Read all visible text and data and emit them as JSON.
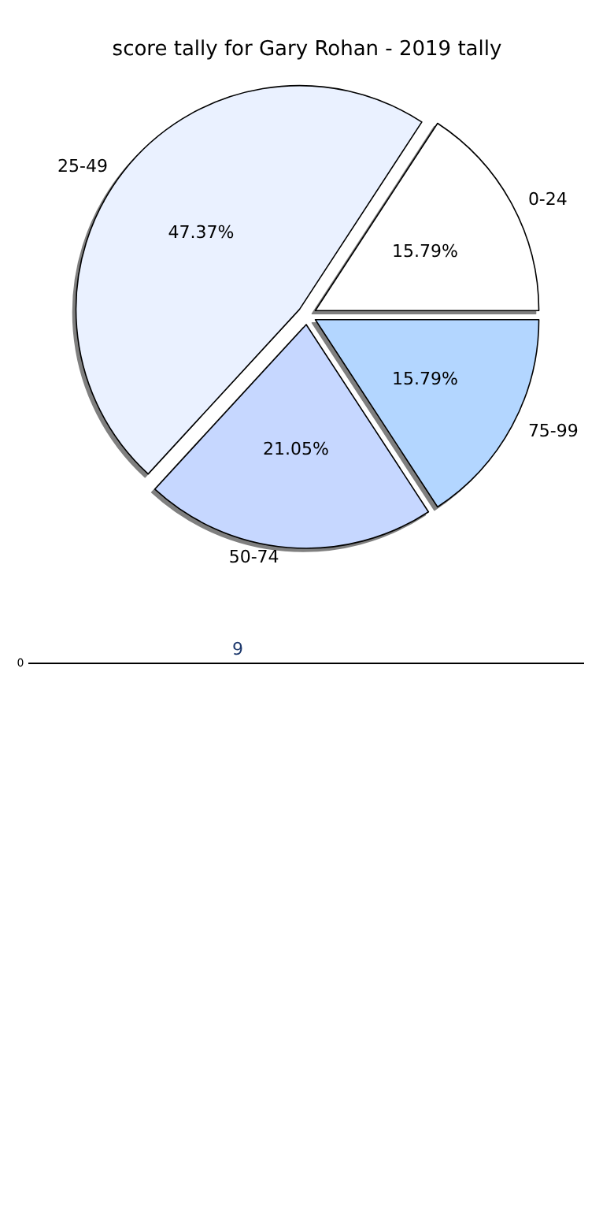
{
  "chart_data": [
    {
      "type": "pie",
      "title": "score tally for Gary Rohan - 2019 tally",
      "categories": [
        "0-24",
        "25-49",
        "50-74",
        "75-99"
      ],
      "values": [
        15.79,
        47.37,
        21.05,
        15.79
      ],
      "colors": [
        "#ffffff",
        "#eaf1ff",
        "#c6d7ff",
        "#b3d6ff"
      ],
      "value_labels": [
        "15.79%",
        "47.37%",
        "21.05%",
        "15.79%"
      ],
      "legend": false
    },
    {
      "type": "other",
      "annotations": [
        "0",
        "9"
      ]
    }
  ]
}
